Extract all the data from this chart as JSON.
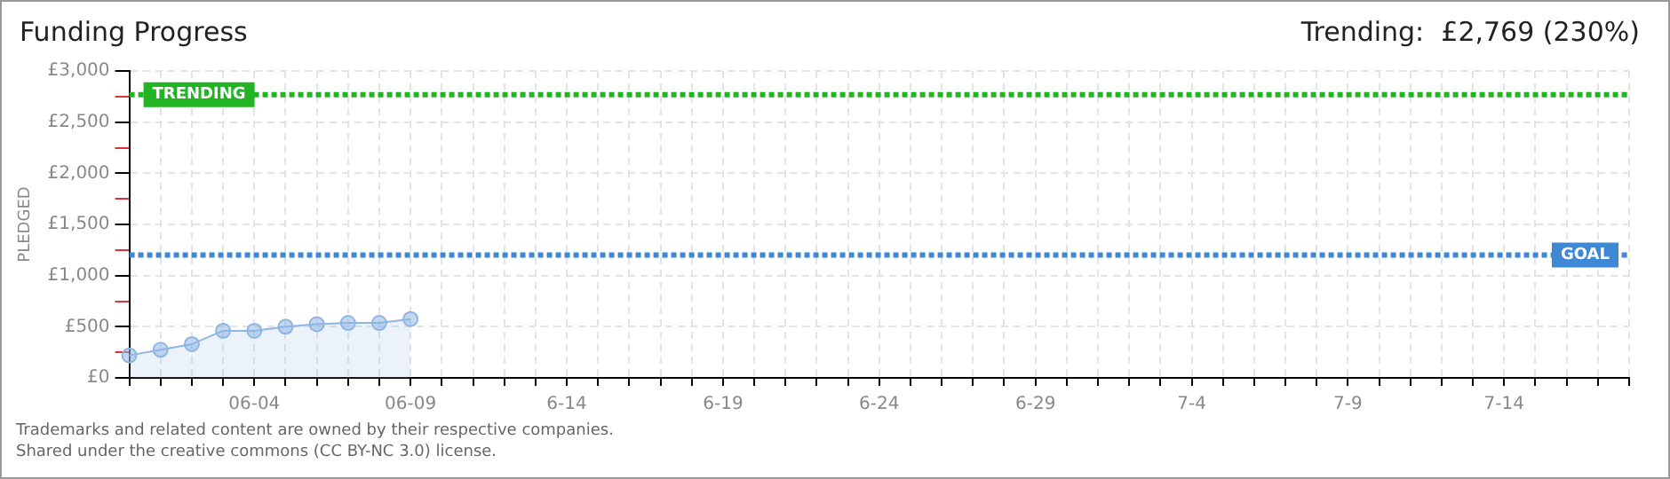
{
  "chart_data": {
    "type": "area",
    "title": "Funding Progress",
    "subtitle": "Trending:  £2,769 (230%)",
    "ylabel": "PLEDGED",
    "categories": [
      null,
      null,
      null,
      null,
      "06-04",
      null,
      null,
      null,
      null,
      "06-09",
      null,
      null,
      null,
      null,
      "6-14",
      null,
      null,
      null,
      null,
      "6-19",
      null,
      null,
      null,
      null,
      "6-24",
      null,
      null,
      null,
      null,
      "6-29",
      null,
      null,
      null,
      null,
      "7-4",
      null,
      null,
      null,
      null,
      "7-9",
      null,
      null,
      null,
      null,
      "7-14",
      null,
      null,
      null,
      null
    ],
    "series": [
      {
        "color": "#8fb6e3",
        "values": [
          220,
          275,
          330,
          460,
          460,
          500,
          525,
          537,
          537,
          575,
          null,
          null,
          null,
          null,
          null,
          null,
          null,
          null,
          null,
          null,
          null,
          null,
          null,
          null,
          null,
          null,
          null,
          null,
          null,
          null,
          null,
          null,
          null,
          null,
          null,
          null,
          null,
          null,
          null,
          null,
          null,
          null,
          null,
          null,
          null,
          null,
          null,
          null,
          null
        ]
      }
    ],
    "ylim": [
      0,
      3000
    ],
    "yticks": [
      {
        "value": 0,
        "label": "£0"
      },
      {
        "value": 250,
        "label": null
      },
      {
        "value": 500,
        "label": "£500"
      },
      {
        "value": 750,
        "label": null
      },
      {
        "value": 1000,
        "label": "£1,000"
      },
      {
        "value": 1250,
        "label": null
      },
      {
        "value": 1500,
        "label": "£1,500"
      },
      {
        "value": 1750,
        "label": null
      },
      {
        "value": 2000,
        "label": "£2,000"
      },
      {
        "value": 2250,
        "label": null
      },
      {
        "value": 2500,
        "label": "£2,500"
      },
      {
        "value": 2750,
        "label": null
      },
      {
        "value": 3000,
        "label": "£3,000"
      }
    ],
    "ref_lines": [
      {
        "axis": "y",
        "value": 2769,
        "label": "TRENDING",
        "color": "#22b422",
        "line_style": "dotted"
      },
      {
        "axis": "y",
        "value": 1200,
        "label": "GOAL",
        "color": "#3f88d6",
        "line_style": "dotted"
      }
    ],
    "annotations": [
      "Trademarks and related content are owned by their respective companies.",
      "Shared under the creative commons (CC BY-NC 3.0) license."
    ],
    "grid": true,
    "legend": false,
    "marker": "circle",
    "line_style": "solid"
  }
}
